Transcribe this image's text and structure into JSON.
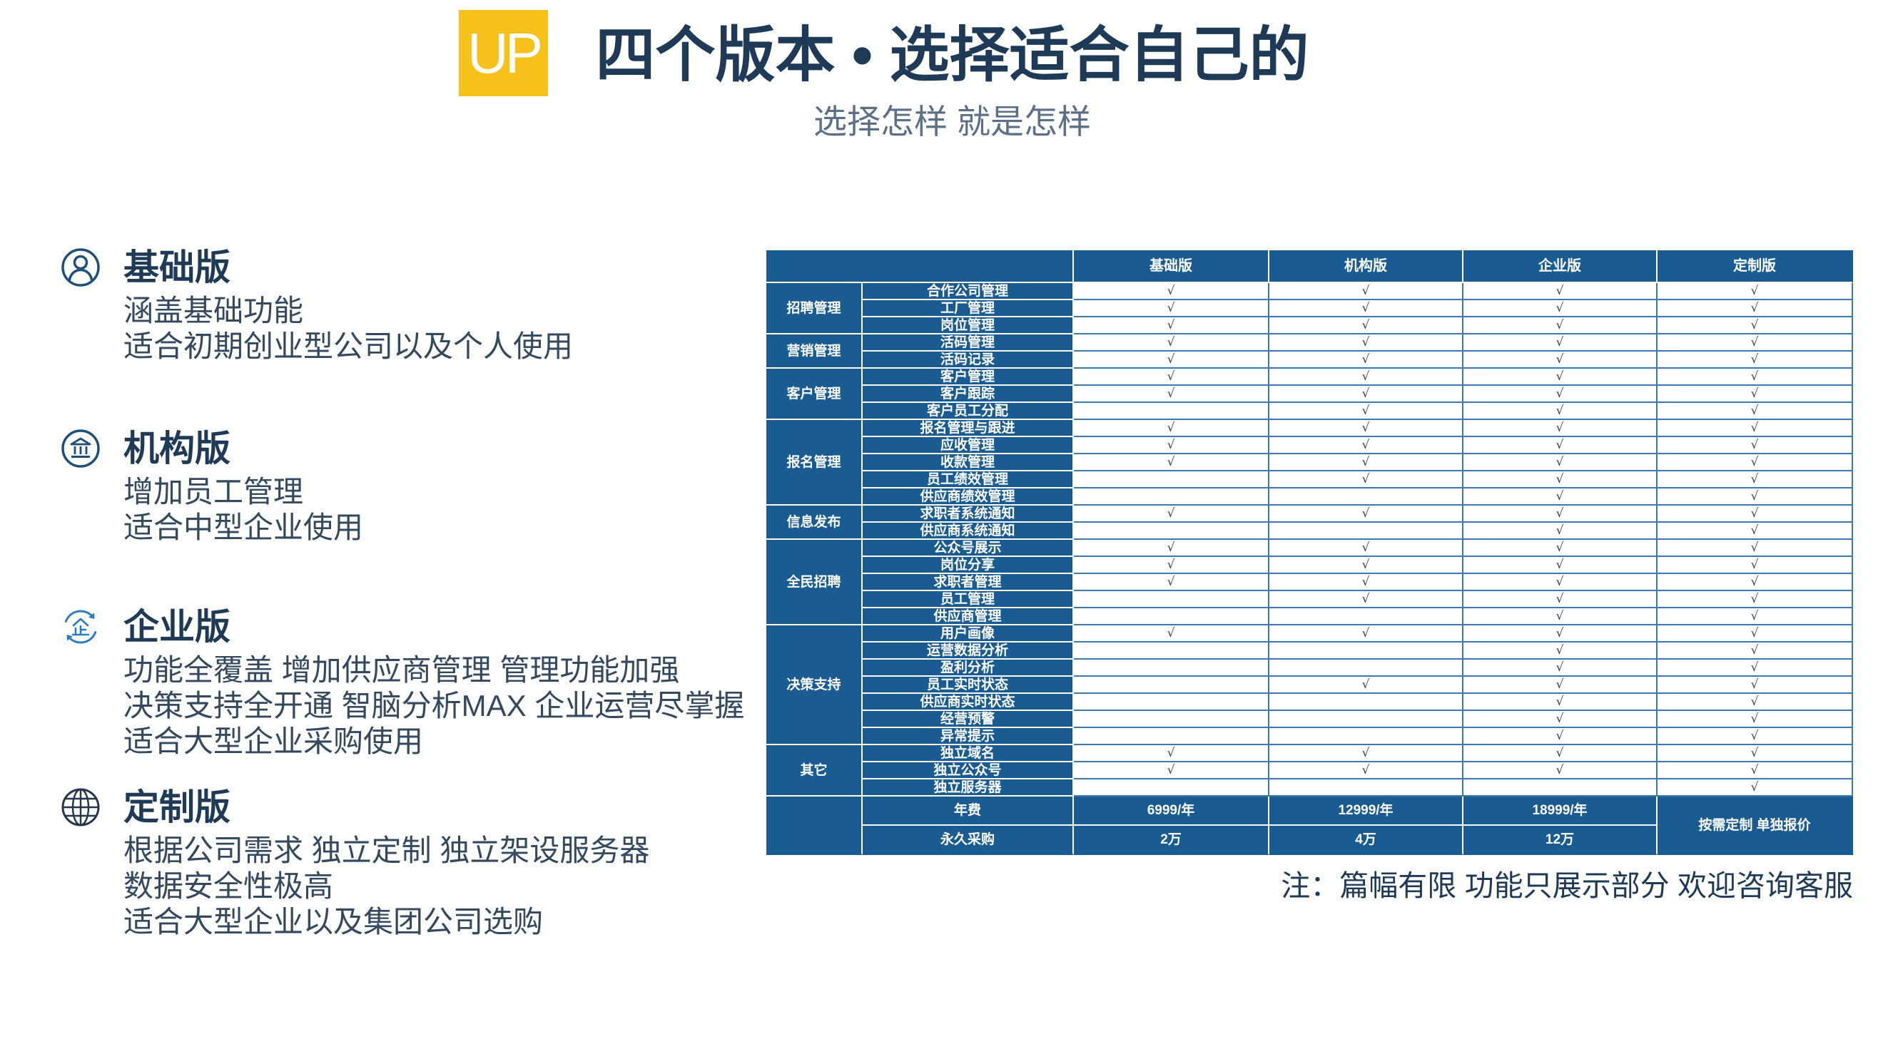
{
  "logo": {
    "text": "UP"
  },
  "header": {
    "title": "四个版本 • 选择适合自己的",
    "subtitle": "选择怎样 就是怎样"
  },
  "versions": [
    {
      "icon": "user-circle-icon",
      "title": "基础版",
      "lines": [
        "涵盖基础功能",
        "适合初期创业型公司以及个人使用"
      ]
    },
    {
      "icon": "institution-icon",
      "title": "机构版",
      "lines": [
        "增加员工管理",
        "适合中型企业使用"
      ]
    },
    {
      "icon": "enterprise-cycle-icon",
      "title": "企业版",
      "lines": [
        "功能全覆盖 增加供应商管理 管理功能加强",
        "决策支持全开通 智脑分析MAX 企业运营尽掌握",
        "适合大型企业采购使用"
      ]
    },
    {
      "icon": "globe-icon",
      "title": "定制版",
      "lines": [
        "根据公司需求 独立定制 独立架设服务器",
        "数据安全性极高",
        "适合大型企业以及集团公司选购"
      ]
    }
  ],
  "table": {
    "editions": [
      "基础版",
      "机构版",
      "企业版",
      "定制版"
    ],
    "check_mark": "√",
    "groups": [
      {
        "category": "招聘管理",
        "features": [
          {
            "name": "合作公司管理",
            "support": [
              true,
              true,
              true,
              true
            ]
          },
          {
            "name": "工厂管理",
            "support": [
              true,
              true,
              true,
              true
            ]
          },
          {
            "name": "岗位管理",
            "support": [
              true,
              true,
              true,
              true
            ]
          }
        ]
      },
      {
        "category": "营销管理",
        "features": [
          {
            "name": "活码管理",
            "support": [
              true,
              true,
              true,
              true
            ]
          },
          {
            "name": "活码记录",
            "support": [
              true,
              true,
              true,
              true
            ]
          }
        ]
      },
      {
        "category": "客户管理",
        "features": [
          {
            "name": "客户管理",
            "support": [
              true,
              true,
              true,
              true
            ]
          },
          {
            "name": "客户跟踪",
            "support": [
              true,
              true,
              true,
              true
            ]
          },
          {
            "name": "客户员工分配",
            "support": [
              false,
              true,
              true,
              true
            ]
          }
        ]
      },
      {
        "category": "报名管理",
        "features": [
          {
            "name": "报名管理与跟进",
            "support": [
              true,
              true,
              true,
              true
            ]
          },
          {
            "name": "应收管理",
            "support": [
              true,
              true,
              true,
              true
            ]
          },
          {
            "name": "收款管理",
            "support": [
              true,
              true,
              true,
              true
            ]
          },
          {
            "name": "员工绩效管理",
            "support": [
              false,
              true,
              true,
              true
            ]
          },
          {
            "name": "供应商绩效管理",
            "support": [
              false,
              false,
              true,
              true
            ]
          }
        ]
      },
      {
        "category": "信息发布",
        "features": [
          {
            "name": "求职者系统通知",
            "support": [
              true,
              true,
              true,
              true
            ]
          },
          {
            "name": "供应商系统通知",
            "support": [
              false,
              false,
              true,
              true
            ]
          }
        ]
      },
      {
        "category": "全民招聘",
        "features": [
          {
            "name": "公众号展示",
            "support": [
              true,
              true,
              true,
              true
            ]
          },
          {
            "name": "岗位分享",
            "support": [
              true,
              true,
              true,
              true
            ]
          },
          {
            "name": "求职者管理",
            "support": [
              true,
              true,
              true,
              true
            ]
          },
          {
            "name": "员工管理",
            "support": [
              false,
              true,
              true,
              true
            ]
          },
          {
            "name": "供应商管理",
            "support": [
              false,
              false,
              true,
              true
            ]
          }
        ]
      },
      {
        "category": "决策支持",
        "features": [
          {
            "name": "用户画像",
            "support": [
              true,
              true,
              true,
              true
            ]
          },
          {
            "name": "运营数据分析",
            "support": [
              false,
              false,
              true,
              true
            ]
          },
          {
            "name": "盈利分析",
            "support": [
              false,
              false,
              true,
              true
            ]
          },
          {
            "name": "员工实时状态",
            "support": [
              false,
              true,
              true,
              true
            ]
          },
          {
            "name": "供应商实时状态",
            "support": [
              false,
              false,
              true,
              true
            ]
          },
          {
            "name": "经营预警",
            "support": [
              false,
              false,
              true,
              true
            ]
          },
          {
            "name": "异常提示",
            "support": [
              false,
              false,
              true,
              true
            ]
          }
        ]
      },
      {
        "category": "其它",
        "features": [
          {
            "name": "独立域名",
            "support": [
              true,
              true,
              true,
              true
            ]
          },
          {
            "name": "独立公众号",
            "support": [
              true,
              true,
              true,
              true
            ]
          },
          {
            "name": "独立服务器",
            "support": [
              false,
              false,
              false,
              true
            ]
          }
        ]
      }
    ],
    "pricing": {
      "annual_label": "年费",
      "annual": [
        "6999/年",
        "12999/年",
        "18999/年"
      ],
      "perpetual_label": "永久采购",
      "perpetual": [
        "2万",
        "4万",
        "12万"
      ],
      "custom_quote": "按需定制 单独报价"
    }
  },
  "note": "注：篇幅有限 功能只展示部分 欢迎咨询客服",
  "colors": {
    "logo_yellow": "#f5c11a",
    "title_navy": "#1f3a56",
    "table_blue": "#1a5c92",
    "icon_dark_blue": "#1f4e79",
    "icon_light_blue": "#2a7dc4"
  }
}
